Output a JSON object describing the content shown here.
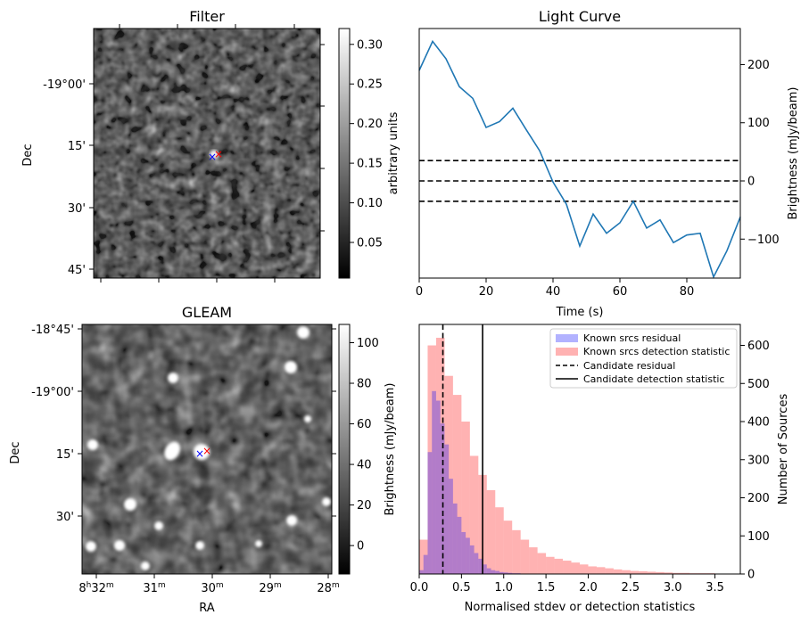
{
  "filter_panel": {
    "title": "Filter",
    "ylabel": "Dec",
    "dec_ticks": [
      "-19°00'",
      "15'",
      "30'",
      "45'"
    ],
    "colorbar": {
      "label": "arbitrary units",
      "ticks": [
        "0.05",
        "0.10",
        "0.15",
        "0.20",
        "0.25",
        "0.30"
      ],
      "range": [
        0.005,
        0.32
      ]
    },
    "marker_blue": "×",
    "marker_red": "×"
  },
  "gleam_panel": {
    "title": "GLEAM",
    "xlabel": "RA",
    "ylabel": "Dec",
    "dec_ticks": [
      "-18°45'",
      "-19°00'",
      "15'",
      "30'"
    ],
    "ra_ticks": [
      {
        "h": "8",
        "hs": "h",
        "m": "32",
        "ms": "m"
      },
      {
        "m": "31",
        "ms": "m"
      },
      {
        "m": "30",
        "ms": "m"
      },
      {
        "m": "29",
        "ms": "m"
      },
      {
        "m": "28",
        "ms": "m"
      }
    ],
    "colorbar": {
      "label": "Brightness (mJy/beam)",
      "ticks": [
        "0",
        "20",
        "40",
        "60",
        "80",
        "100"
      ],
      "range": [
        -14,
        109
      ]
    },
    "marker_blue": "×",
    "marker_red": "×"
  },
  "chart_data": [
    {
      "type": "line",
      "title": "Light Curve",
      "xlabel": "Time (s)",
      "ylabel": "Brightness (mJy/beam)",
      "xlim": [
        0,
        96
      ],
      "ylim": [
        -167,
        262
      ],
      "xticks": [
        0,
        20,
        40,
        60,
        80
      ],
      "yticks": [
        -100,
        0,
        100,
        200
      ],
      "series": [
        {
          "name": "light curve",
          "color": "#1f77b4",
          "x": [
            0,
            4,
            8,
            12,
            16,
            20,
            24,
            28,
            32,
            36,
            40,
            44,
            48,
            52,
            56,
            60,
            64,
            68,
            72,
            76,
            80,
            84,
            88,
            92,
            96
          ],
          "y": [
            190,
            240,
            210,
            162,
            142,
            92,
            102,
            125,
            88,
            52,
            -2,
            -40,
            -112,
            -57,
            -90,
            -72,
            -35,
            -81,
            -67,
            -106,
            -93,
            -90,
            -165,
            -120,
            -62
          ]
        }
      ],
      "hlines": [
        35,
        0,
        -35
      ]
    },
    {
      "type": "histogram",
      "xlabel": "Normalised stdev or detection statistics",
      "ylabel": "Number of Sources",
      "xlim": [
        0,
        3.8
      ],
      "ylim": [
        0,
        655
      ],
      "xticks": [
        "0.0",
        "0.5",
        "1.0",
        "1.5",
        "2.0",
        "2.5",
        "3.0",
        "3.5"
      ],
      "yticks": [
        0,
        100,
        200,
        300,
        400,
        500,
        600
      ],
      "series": [
        {
          "name": "Known srcs residual",
          "color": "#0000ff",
          "bin_width": 0.05,
          "bin_start": 0.0,
          "counts": [
            10,
            50,
            320,
            480,
            455,
            395,
            340,
            250,
            185,
            150,
            110,
            95,
            75,
            55,
            40,
            25,
            15,
            10,
            8,
            5,
            4,
            3,
            2,
            2,
            1
          ]
        },
        {
          "name": "Known srcs detection statistic",
          "color": "#ff0000",
          "bin_width": 0.1,
          "bin_start": 0.0,
          "counts": [
            90,
            600,
            620,
            520,
            470,
            400,
            310,
            260,
            220,
            175,
            140,
            115,
            90,
            70,
            55,
            45,
            40,
            35,
            30,
            25,
            20,
            18,
            15,
            12,
            10,
            8,
            7,
            6,
            5,
            4,
            3,
            3,
            2,
            2,
            2,
            1,
            1,
            1
          ]
        }
      ],
      "vlines": [
        {
          "name": "Candidate residual",
          "x": 0.28,
          "style": "dashed"
        },
        {
          "name": "Candidate detection statistic",
          "x": 0.75,
          "style": "solid"
        }
      ],
      "legend_position": "top-right"
    }
  ]
}
